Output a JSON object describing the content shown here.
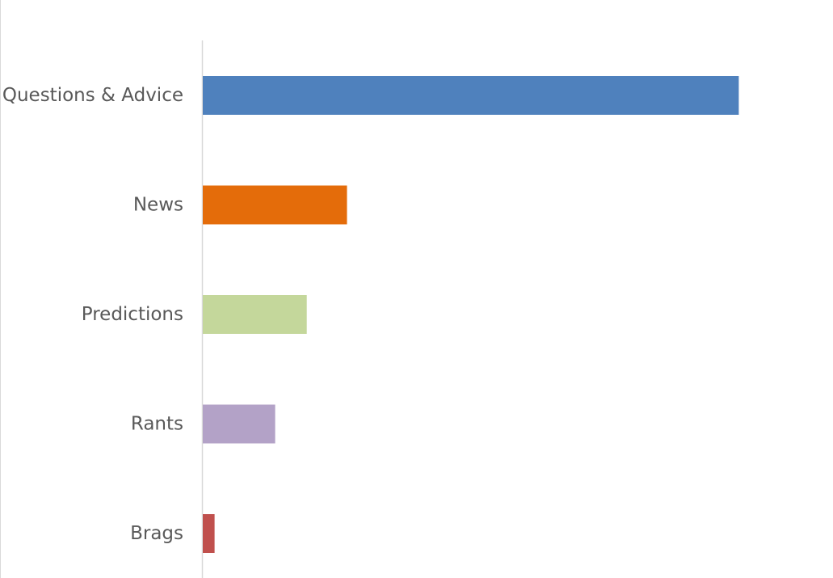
{
  "chart_data": {
    "type": "bar",
    "orientation": "horizontal",
    "categories": [
      "Questions & Advice",
      "News",
      "Predictions",
      "Rants",
      "Brags"
    ],
    "values": [
      100,
      26.9,
      19.4,
      13.5,
      2.2
    ],
    "colors": [
      "#4f81bd",
      "#e46c0a",
      "#c4d79b",
      "#b3a2c7",
      "#c0504d"
    ],
    "title": "",
    "xlabel": "",
    "ylabel": "",
    "xlim": [
      0,
      112
    ],
    "grid": false,
    "legend": "none"
  }
}
